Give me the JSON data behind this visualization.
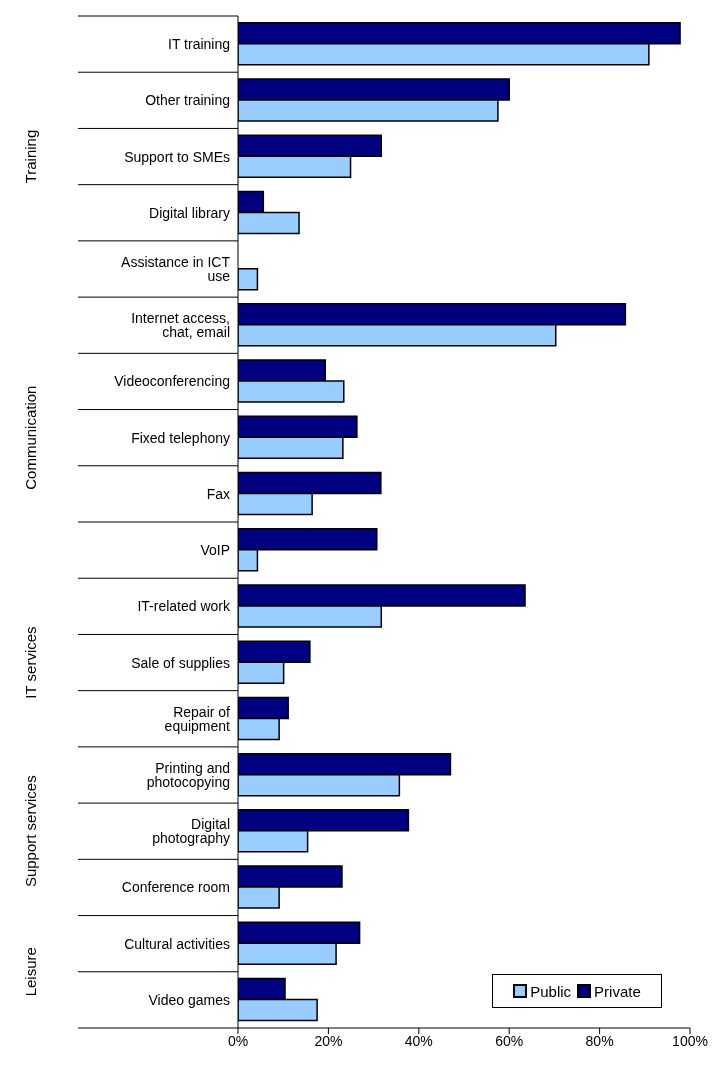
{
  "chart_data": {
    "type": "bar",
    "orientation": "horizontal",
    "categories": [
      "IT training",
      "Other training",
      "Support to SMEs",
      "Digital library",
      "Assistance in ICT use",
      "Internet access, chat, email",
      "Videoconferencing",
      "Fixed telephony",
      "Fax",
      "VoIP",
      "IT-related work",
      "Sale of supplies",
      "Repair of equipment",
      "Printing and photocopying",
      "Digital photography",
      "Conference room",
      "Cultural activities",
      "Video games"
    ],
    "series": [
      {
        "name": "Public",
        "color": "#99ccff",
        "values": [
          90.9,
          57.5,
          24.9,
          13.5,
          4.3,
          70.3,
          23.4,
          23.2,
          16.4,
          4.3,
          31.7,
          10.1,
          9.1,
          35.7,
          15.4,
          9.1,
          21.7,
          17.5
        ]
      },
      {
        "name": "Private",
        "color": "#000080",
        "values": [
          97.8,
          60.0,
          31.7,
          5.6,
          0,
          85.7,
          19.3,
          26.3,
          31.6,
          30.7,
          63.5,
          15.9,
          11.1,
          47.0,
          37.7,
          23.0,
          26.9,
          10.4
        ]
      }
    ],
    "xlim": [
      0,
      100
    ],
    "xticks": [
      {
        "value": 0,
        "label": "0%"
      },
      {
        "value": 20,
        "label": "20%"
      },
      {
        "value": 40,
        "label": "40%"
      },
      {
        "value": 60,
        "label": "60%"
      },
      {
        "value": 80,
        "label": "80%"
      },
      {
        "value": 100,
        "label": "100%"
      }
    ],
    "annotations": [
      "Training",
      "Communication",
      "IT services",
      "Support services",
      "Leisure"
    ],
    "legend": "bottom right"
  }
}
